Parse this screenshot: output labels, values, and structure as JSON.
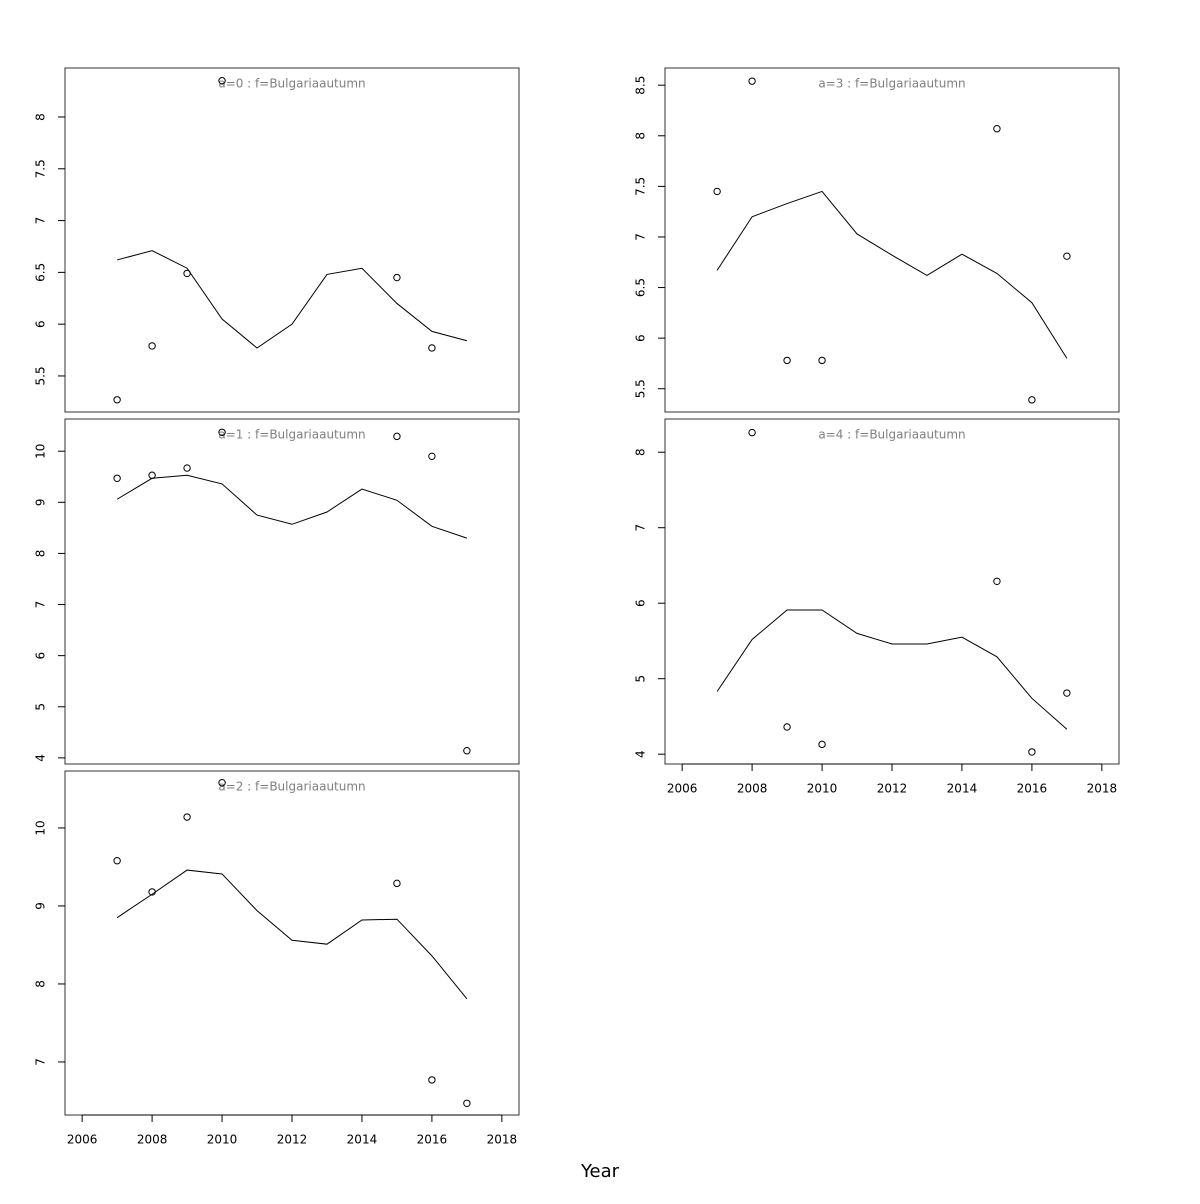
{
  "x_label": "Year",
  "chart_data": [
    {
      "type": "line",
      "title": "a=0  :  f=Bulgariaautumn",
      "x": [
        2007,
        2008,
        2009,
        2010,
        2011,
        2012,
        2013,
        2014,
        2015,
        2016,
        2017
      ],
      "series": [
        {
          "color": "#000000",
          "marker": "circle",
          "line": false,
          "values": [
            5.27,
            5.79,
            6.49,
            8.35,
            null,
            null,
            null,
            null,
            6.45,
            5.77,
            null
          ]
        },
        {
          "color": "#000000",
          "marker": "none",
          "line": true,
          "values": [
            6.62,
            6.71,
            6.54,
            6.05,
            5.77,
            6.0,
            6.48,
            6.54,
            6.2,
            5.93,
            5.84
          ]
        }
      ],
      "xlim": [
        2005.51,
        2018.49
      ],
      "ylim": [
        5.152,
        8.473
      ],
      "yticks": [
        5.5,
        6.0,
        6.5,
        7.0,
        7.5,
        8.0
      ]
    },
    {
      "type": "line",
      "title": "a=1  :  f=Bulgariaautumn",
      "x": [
        2007,
        2008,
        2009,
        2010,
        2011,
        2012,
        2013,
        2014,
        2015,
        2016,
        2017
      ],
      "series": [
        {
          "color": "#000000",
          "marker": "circle",
          "line": false,
          "values": [
            9.47,
            9.53,
            9.67,
            10.37,
            null,
            null,
            null,
            null,
            10.29,
            9.9,
            4.14
          ]
        },
        {
          "color": "#000000",
          "marker": "none",
          "line": true,
          "values": [
            9.06,
            9.47,
            9.53,
            9.36,
            8.75,
            8.57,
            8.81,
            9.26,
            9.04,
            8.53,
            8.3
          ]
        }
      ],
      "xlim": [
        2005.51,
        2018.49
      ],
      "ylim": [
        3.88,
        10.63
      ],
      "yticks": [
        4,
        5,
        6,
        7,
        8,
        9,
        10
      ]
    },
    {
      "type": "line",
      "title": "a=2  :  f=Bulgariaautumn",
      "x": [
        2007,
        2008,
        2009,
        2010,
        2011,
        2012,
        2013,
        2014,
        2015,
        2016,
        2017
      ],
      "series": [
        {
          "color": "#000000",
          "marker": "circle",
          "line": false,
          "values": [
            9.58,
            9.18,
            10.14,
            10.58,
            null,
            null,
            null,
            null,
            9.29,
            6.77,
            6.47
          ]
        },
        {
          "color": "#000000",
          "marker": "none",
          "line": true,
          "values": [
            8.85,
            9.15,
            9.46,
            9.41,
            8.94,
            8.56,
            8.51,
            8.82,
            8.83,
            8.36,
            7.81
          ]
        }
      ],
      "xlim": [
        2005.51,
        2018.49
      ],
      "ylim": [
        6.32,
        10.73
      ],
      "yticks": [
        7,
        8,
        9,
        10
      ],
      "xticks": [
        2006,
        2008,
        2010,
        2012,
        2014,
        2016,
        2018
      ]
    },
    {
      "type": "line",
      "title": "a=3  :  f=Bulgariaautumn",
      "x": [
        2007,
        2008,
        2009,
        2010,
        2011,
        2012,
        2013,
        2014,
        2015,
        2016,
        2017
      ],
      "series": [
        {
          "color": "#000000",
          "marker": "circle",
          "line": false,
          "values": [
            7.45,
            8.54,
            5.78,
            5.78,
            null,
            null,
            null,
            null,
            8.07,
            5.39,
            6.81
          ]
        },
        {
          "color": "#000000",
          "marker": "none",
          "line": true,
          "values": [
            6.67,
            7.2,
            7.33,
            7.45,
            7.03,
            6.82,
            6.62,
            6.83,
            6.64,
            6.35,
            5.8
          ]
        }
      ],
      "xlim": [
        2005.51,
        2018.49
      ],
      "ylim": [
        5.27,
        8.67
      ],
      "yticks": [
        5.5,
        6.0,
        6.5,
        7.0,
        7.5,
        8.0,
        8.5
      ]
    },
    {
      "type": "line",
      "title": "a=4  :  f=Bulgariaautumn",
      "x": [
        2007,
        2008,
        2009,
        2010,
        2011,
        2012,
        2013,
        2014,
        2015,
        2016,
        2017
      ],
      "series": [
        {
          "color": "#000000",
          "marker": "circle",
          "line": false,
          "values": [
            null,
            8.26,
            4.36,
            4.13,
            null,
            null,
            null,
            null,
            6.29,
            4.03,
            4.81
          ]
        },
        {
          "color": "#000000",
          "marker": "none",
          "line": true,
          "values": [
            4.83,
            5.52,
            5.91,
            5.91,
            5.6,
            5.46,
            5.46,
            5.55,
            5.29,
            4.74,
            4.33
          ]
        }
      ],
      "xlim": [
        2005.51,
        2018.49
      ],
      "ylim": [
        3.87,
        8.44
      ],
      "yticks": [
        4,
        5,
        6,
        7,
        8
      ],
      "xticks": [
        2006,
        2008,
        2010,
        2012,
        2014,
        2016,
        2018
      ]
    }
  ]
}
